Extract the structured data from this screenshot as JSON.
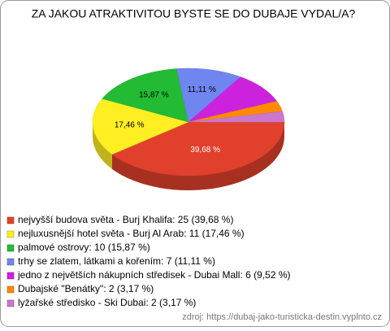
{
  "chart_data": {
    "type": "pie3d",
    "title": "ZA JAKOU ATRAKTIVITOU BYSTE SE DO DUBAJE VYDAL/A?",
    "categories": [
      "nejvyšší budova světa - Burj Khalifa: 25 (39,68 %)",
      "nejluxusnější hotel světa - Burj Al Arab: 11 (17,46 %)",
      "palmové ostrovy: 10 (15,87 %)",
      "trhy se zlatem, látkami a kořením: 7 (11,11 %)",
      "jedno z největších nákupních středisek - Dubai Mall: 6 (9,52 %)",
      "Dubajské \"Benátky\": 2 (3,17 %)",
      "lyžařské středisko - Ski Dubai: 2 (3,17 %)"
    ],
    "values": [
      39.68,
      17.46,
      15.87,
      11.11,
      9.52,
      3.17,
      3.17
    ],
    "value_labels": [
      "39,68 %",
      "17,46 %",
      "15,87 %",
      "11,11 %",
      null,
      null,
      null
    ],
    "colors": [
      "#e0402c",
      "#ffee22",
      "#22bb33",
      "#6f86f0",
      "#cc22dd",
      "#ff8a00",
      "#cc77cc"
    ],
    "source": "zdroj: https://dubaj-jako-turisticka-destin.vyplnto.cz"
  }
}
